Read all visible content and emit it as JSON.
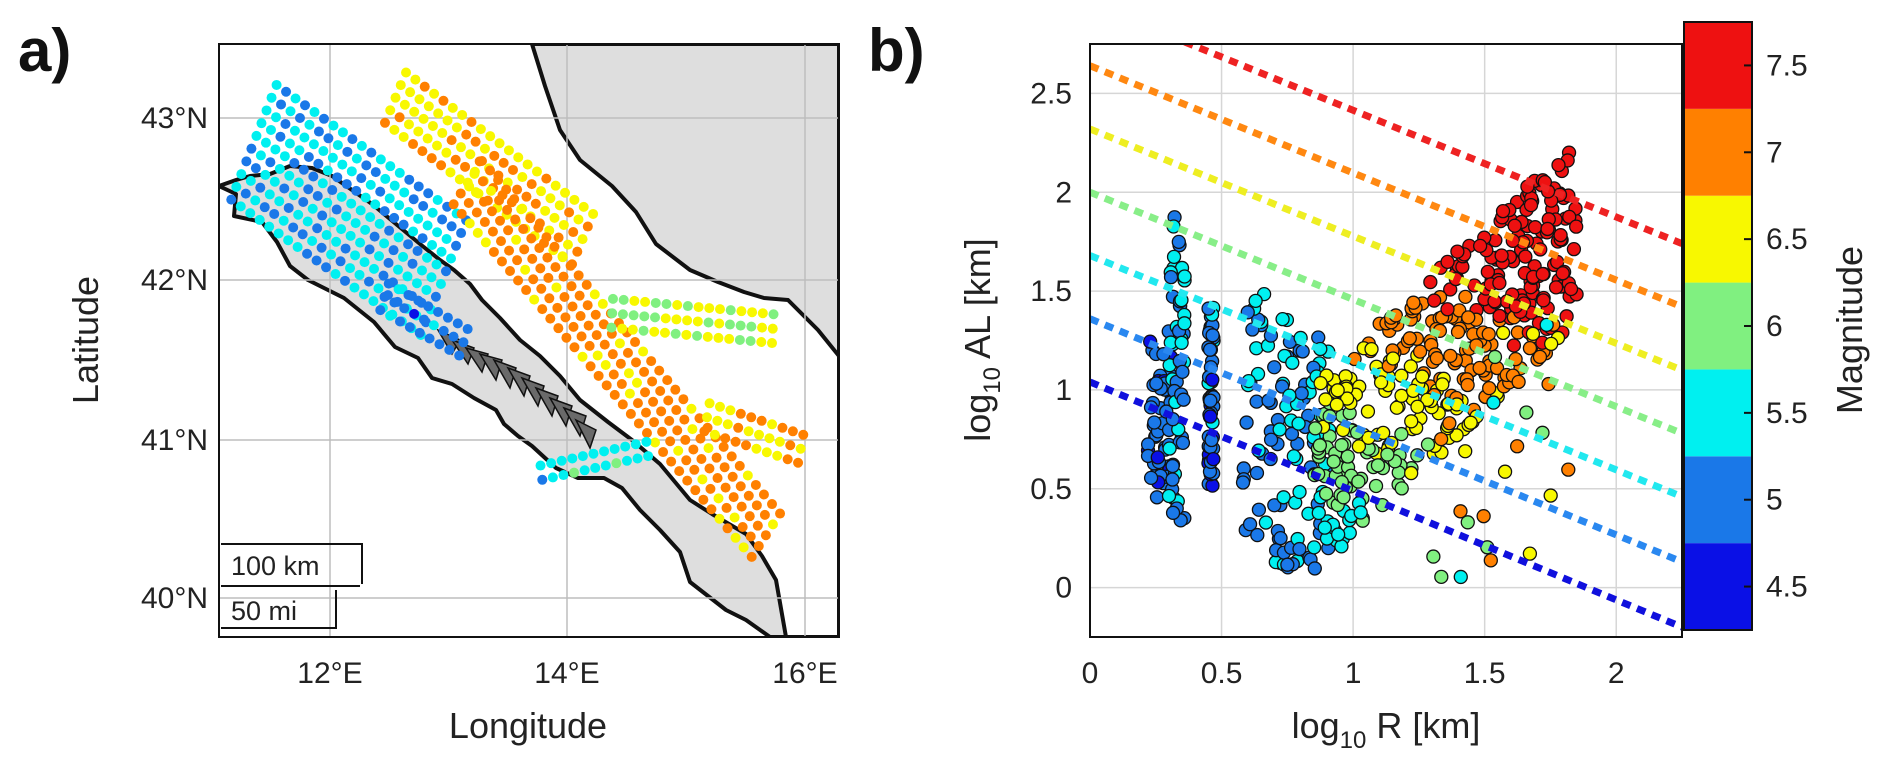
{
  "panel_a": {
    "label": "a)",
    "xlabel": "Longitude",
    "ylabel": "Latitude",
    "xticks": [
      "12°E",
      "14°E",
      "16°E"
    ],
    "yticks": [
      "43°N",
      "42°N",
      "41°N",
      "40°N"
    ],
    "scale_km": "100 km",
    "scale_mi": "50 mi"
  },
  "panel_b": {
    "label": "b)",
    "xlabel_prefix": "log",
    "xlabel_sub": "10",
    "xlabel_suffix": " R  [km]",
    "ylabel_prefix": "log",
    "ylabel_sub": "10",
    "ylabel_suffix": " AL  [km]",
    "colorbar_label": "Magnitude",
    "colorbar_ticks": [
      "4.5",
      "5",
      "5.5",
      "6",
      "6.5",
      "7",
      "7.5"
    ],
    "xticks": [
      "0",
      "0.5",
      "1",
      "1.5",
      "2"
    ],
    "yticks": [
      "0",
      "0.5",
      "1",
      "1.5",
      "2",
      "2.5"
    ]
  },
  "chart_data": [
    {
      "type": "scatter",
      "subtype": "map",
      "xlabel": "Longitude",
      "ylabel": "Latitude",
      "xlim": [
        11.1,
        16.3
      ],
      "ylim": [
        39.75,
        43.45
      ],
      "xticks": [
        "12°E",
        "14°E",
        "16°E"
      ],
      "yticks": [
        "43°N",
        "42°N",
        "41°N",
        "40°N"
      ],
      "grid": true,
      "colormap": "magnitude (blue to red, 4.5 to 7.5)",
      "scale_bar": [
        "100 km",
        "50 mi"
      ],
      "land_color": "#dedede",
      "coastline_color": "#111111"
    },
    {
      "type": "scatter",
      "xlabel": "log10 R [km]",
      "ylabel": "log10 AL [km]",
      "xlim": [
        0,
        2.25
      ],
      "ylim": [
        -0.25,
        2.75
      ],
      "grid": true,
      "colorbar": {
        "label": "Magnitude",
        "range": [
          4.25,
          7.75
        ],
        "bins": [
          {
            "value": 4.5,
            "color": "#0a10e6"
          },
          {
            "value": 5.0,
            "color": "#1a78e8"
          },
          {
            "value": 5.5,
            "color": "#00f0f0"
          },
          {
            "value": 6.0,
            "color": "#80f080"
          },
          {
            "value": 6.5,
            "color": "#f8f800"
          },
          {
            "value": 7.0,
            "color": "#ff8000"
          },
          {
            "value": 7.5,
            "color": "#ee1111"
          }
        ]
      },
      "reference_lines": [
        {
          "magnitude": 4.5,
          "color": "#1010dd",
          "points": [
            [
              0,
              1.04
            ],
            [
              2.25,
              -0.2
            ]
          ]
        },
        {
          "magnitude": 5.0,
          "color": "#2a88f0",
          "points": [
            [
              0,
              1.36
            ],
            [
              2.25,
              0.13
            ]
          ]
        },
        {
          "magnitude": 5.5,
          "color": "#22e8ef",
          "points": [
            [
              0,
              1.68
            ],
            [
              2.25,
              0.46
            ]
          ]
        },
        {
          "magnitude": 6.0,
          "color": "#88ee88",
          "points": [
            [
              0,
              2.0
            ],
            [
              2.25,
              0.78
            ]
          ]
        },
        {
          "magnitude": 6.5,
          "color": "#eeee22",
          "points": [
            [
              0,
              2.32
            ],
            [
              2.25,
              1.1
            ]
          ]
        },
        {
          "magnitude": 7.0,
          "color": "#ff8811",
          "points": [
            [
              0,
              2.64
            ],
            [
              2.25,
              1.42
            ]
          ]
        },
        {
          "magnitude": 7.5,
          "color": "#ee2222",
          "points": [
            [
              0.36,
              2.76
            ],
            [
              2.25,
              1.74
            ]
          ]
        }
      ]
    }
  ]
}
